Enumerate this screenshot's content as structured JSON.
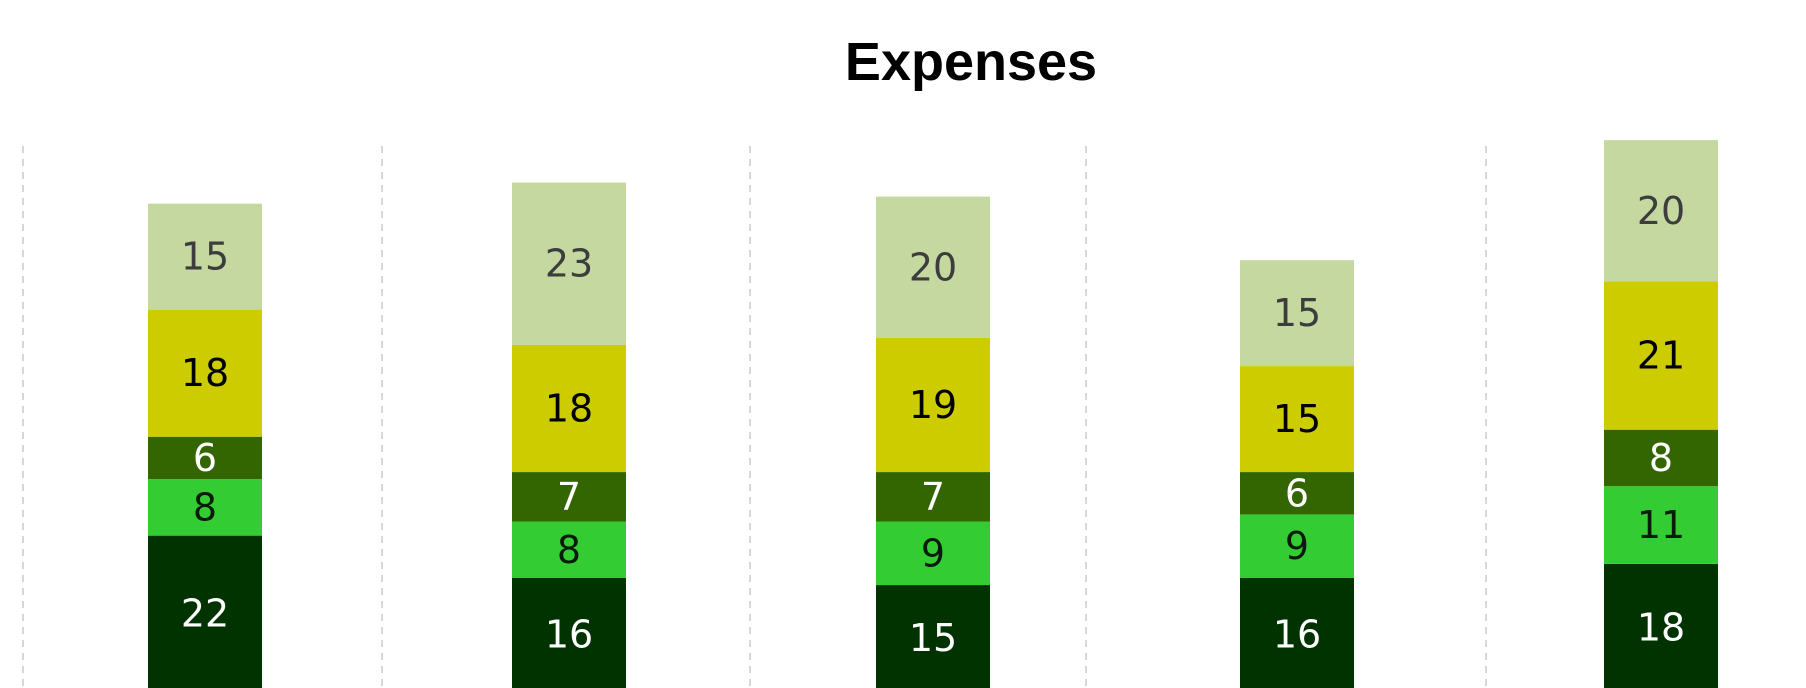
{
  "chart_data": {
    "type": "stacked_bar",
    "title": "Expenses",
    "categories": [
      null,
      null,
      null,
      null,
      null
    ],
    "series": [
      {
        "color": "#003300",
        "label_color": "#ffffff",
        "values": [
          22,
          16,
          15,
          16,
          18
        ]
      },
      {
        "color": "#33cc33",
        "label_color": "#0a1a0a",
        "values": [
          8,
          8,
          9,
          9,
          11
        ]
      },
      {
        "color": "#336600",
        "label_color": "#ffffff",
        "values": [
          6,
          7,
          7,
          6,
          8
        ]
      },
      {
        "color": "#cccc00",
        "label_color": "#000000",
        "values": [
          18,
          18,
          19,
          15,
          21
        ]
      },
      {
        "color": "#c4d89f",
        "label_color": "#3d3d3d",
        "values": [
          15,
          23,
          20,
          15,
          20
        ]
      }
    ],
    "ylim": [
      0,
      80
    ]
  }
}
